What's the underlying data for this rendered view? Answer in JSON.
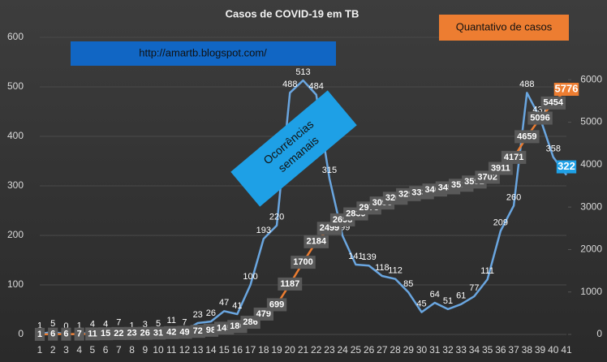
{
  "chart_data": {
    "type": "line",
    "title": "Casos de COVID-19 em TB",
    "categories": [
      "1",
      "2",
      "3",
      "4",
      "5",
      "6",
      "7",
      "8",
      "9",
      "10",
      "11",
      "12",
      "13",
      "14",
      "15",
      "16",
      "17",
      "18",
      "19",
      "20",
      "21",
      "22",
      "23",
      "24",
      "25",
      "26",
      "27",
      "28",
      "29",
      "30",
      "31",
      "32",
      "33",
      "34",
      "35",
      "36",
      "37",
      "38",
      "39",
      "40",
      "41"
    ],
    "series": [
      {
        "color": "#6aa6e0",
        "label_color": "#ffffff",
        "last_label_fill": "#1ea0e6",
        "values": [
          1,
          5,
          0,
          1,
          4,
          4,
          7,
          1,
          3,
          5,
          11,
          7,
          23,
          26,
          47,
          41,
          100,
          193,
          220,
          488,
          513,
          484,
          315,
          199,
          141,
          139,
          118,
          112,
          85,
          45,
          64,
          51,
          61,
          77,
          111,
          209,
          260,
          488,
          437,
          358,
          322
        ]
      },
      {
        "color": "#ed7d31",
        "axis": "y2",
        "label_color": "#ffffff",
        "label_fill": "#595959",
        "last_label_fill": "#ed7d31",
        "values": [
          1,
          6,
          6,
          7,
          11,
          15,
          22,
          23,
          26,
          31,
          42,
          49,
          72,
          98,
          145,
          186,
          286,
          479,
          699,
          1187,
          1700,
          2184,
          2499,
          2698,
          2839,
          2978,
          3096,
          3208,
          3293,
          3338,
          3402,
          3453,
          3514,
          3591,
          3702,
          3911,
          4171,
          4659,
          5096,
          5454,
          5776
        ]
      }
    ],
    "ylim": [
      0,
      600
    ],
    "yticks": [
      0,
      100,
      200,
      300,
      400,
      500,
      600
    ],
    "y2lim": [
      0,
      7000
    ],
    "y2ticks": [
      0,
      1000,
      2000,
      3000,
      4000,
      5000,
      6000
    ],
    "grid": true,
    "annotations": {
      "url": "http://amartb.blogspot.com/",
      "cumulative": "Quantativo de casos",
      "weekly": [
        "Ocorrências",
        "semanais"
      ]
    }
  }
}
